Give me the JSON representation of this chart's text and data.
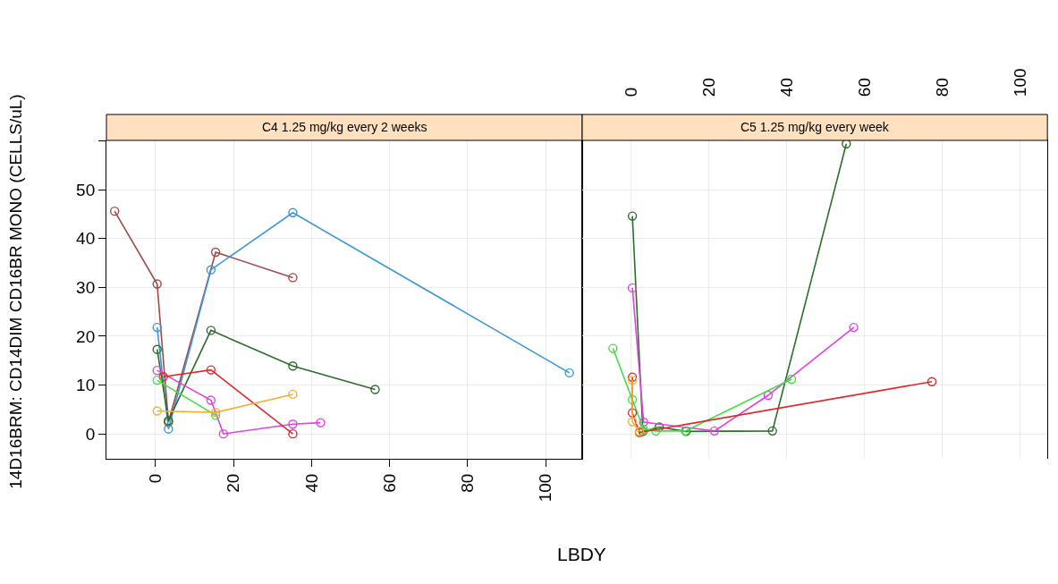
{
  "chart_data": [
    {
      "type": "line",
      "title": "C4 1.25 mg/kg every 2 weeks",
      "xlabel": "LBDY",
      "ylabel": "14D16BRM: CD14DIM CD16BR MONO (CELLS/uL)",
      "marker": "circle",
      "grid": true,
      "xlim": [
        -12.6,
        109.4
      ],
      "xticks": [
        0,
        20,
        40,
        60,
        80,
        100
      ],
      "ylim": [
        -5.1,
        60.1
      ],
      "yticks": [
        0,
        10,
        20,
        30,
        40,
        50,
        {
          "value": 60,
          "label": null
        }
      ],
      "series": [
        {
          "color": "#a04848",
          "x": [
            -10.5,
            0.4,
            3.3,
            15.4,
            35.2
          ],
          "values": [
            45.6,
            30.7,
            2.4,
            37.2,
            32.0
          ]
        },
        {
          "color": "#3a97d8",
          "x": [
            0.4,
            3.3,
            14.2,
            35.2,
            106.1
          ],
          "values": [
            21.8,
            1.0,
            33.6,
            45.3,
            12.5
          ]
        },
        {
          "color": "#2a6e2a",
          "x": [
            0.4,
            3.3,
            14.2,
            35.2,
            56.3
          ],
          "values": [
            17.3,
            2.7,
            21.2,
            13.9,
            9.1
          ]
        },
        {
          "color": "#dd44dd",
          "x": [
            0.4,
            14.2,
            17.4,
            35.2,
            42.3
          ],
          "values": [
            13.0,
            6.9,
            0.0,
            2.0,
            2.3
          ]
        },
        {
          "color": "#dd2a2a",
          "x": [
            2.0,
            14.2,
            35.2
          ],
          "values": [
            11.7,
            13.1,
            0.0
          ]
        },
        {
          "color": "#44dd44",
          "x": [
            0.4,
            15.4
          ],
          "values": [
            11.0,
            3.8
          ]
        },
        {
          "color": "#f2b02e",
          "x": [
            0.4,
            15.4,
            35.2
          ],
          "values": [
            4.7,
            4.4,
            8.1
          ]
        }
      ]
    },
    {
      "type": "line",
      "title": "C5 1.25 mg/kg every week",
      "marker": "circle",
      "grid": true,
      "tick_labels": "x",
      "xlim": [
        -12.6,
        107.0
      ],
      "xticks": [
        0,
        20,
        40,
        60,
        80,
        100
      ],
      "ylim": [
        -5.1,
        60.1
      ],
      "yticks": [
        0,
        10,
        20,
        30,
        40,
        50,
        {
          "value": 60,
          "label": null
        }
      ],
      "series": [
        {
          "color": "#2a6e2a",
          "x": [
            0.3,
            3.0,
            7.2,
            14.1,
            36.3,
            55.3
          ],
          "values": [
            44.6,
            0.5,
            1.4,
            0.5,
            0.6,
            59.4
          ]
        },
        {
          "color": "#dd44dd",
          "x": [
            0.3,
            3.2,
            21.4,
            35.2,
            57.2
          ],
          "values": [
            29.9,
            2.4,
            0.6,
            7.9,
            21.8
          ]
        },
        {
          "color": "#44dd44",
          "x": [
            -4.7,
            0.3,
            3.2,
            6.3,
            13.9,
            41.2
          ],
          "values": [
            17.5,
            7.0,
            0.9,
            0.6,
            0.6,
            11.2
          ]
        },
        {
          "color": "#dd2a2a",
          "x": [
            0.3,
            0.3,
            2.1,
            77.3
          ],
          "values": [
            11.6,
            4.3,
            0.3,
            10.7
          ]
        },
        {
          "color": "#f2b02e",
          "x": [
            0.3,
            0.3,
            2.1
          ],
          "values": [
            11.0,
            2.5,
            0.5
          ]
        }
      ]
    }
  ]
}
